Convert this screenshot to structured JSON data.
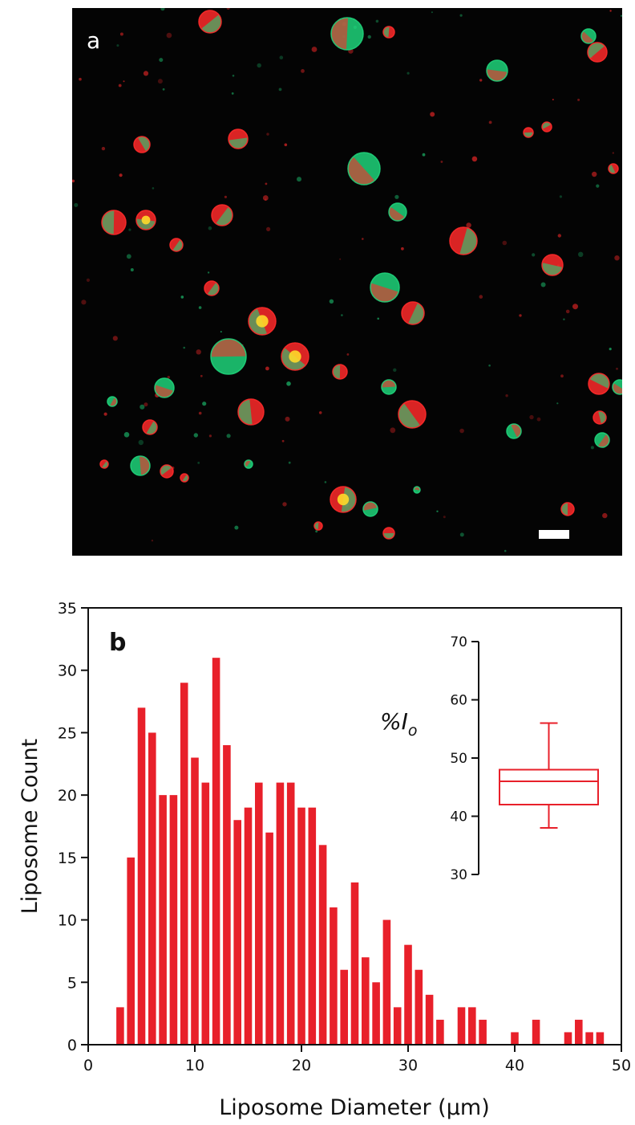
{
  "panel_a": {
    "label": "a",
    "colors": {
      "background": "#040404",
      "red": "#ff2a2a",
      "green": "#1fd37a",
      "scale_bar": "#ffffff"
    }
  },
  "panel_b_label": "b",
  "chart_data": [
    {
      "type": "bar",
      "xlabel": "Liposome Diameter (μm)",
      "ylabel": "Liposome Count",
      "xlim": [
        0,
        50
      ],
      "ylim": [
        0,
        35
      ],
      "xticks": [
        0,
        10,
        20,
        30,
        40,
        50
      ],
      "yticks": [
        0,
        5,
        10,
        15,
        20,
        25,
        30,
        35
      ],
      "bar_color": "#e8202a",
      "x": [
        3,
        4,
        5,
        6,
        7,
        8,
        9,
        10,
        11,
        12,
        13,
        14,
        15,
        16,
        17,
        18,
        19,
        20,
        21,
        22,
        23,
        24,
        25,
        26,
        27,
        28,
        29,
        30,
        31,
        32,
        33,
        35,
        36,
        37,
        40,
        42,
        45,
        46,
        47,
        48
      ],
      "values": [
        3,
        15,
        27,
        25,
        20,
        20,
        29,
        23,
        21,
        31,
        24,
        18,
        19,
        21,
        17,
        21,
        21,
        19,
        19,
        16,
        11,
        6,
        13,
        7,
        5,
        10,
        3,
        8,
        6,
        4,
        2,
        3,
        3,
        2,
        1,
        2,
        1,
        2,
        1,
        1
      ]
    },
    {
      "type": "box",
      "ylabel": "%I",
      "ylabel_sub": "o",
      "ylim": [
        30,
        70
      ],
      "yticks": [
        30,
        40,
        50,
        60,
        70
      ],
      "color": "#e8202a",
      "whisker_low": 38,
      "q1": 42,
      "median": 46,
      "q3": 48,
      "whisker_high": 56
    }
  ]
}
